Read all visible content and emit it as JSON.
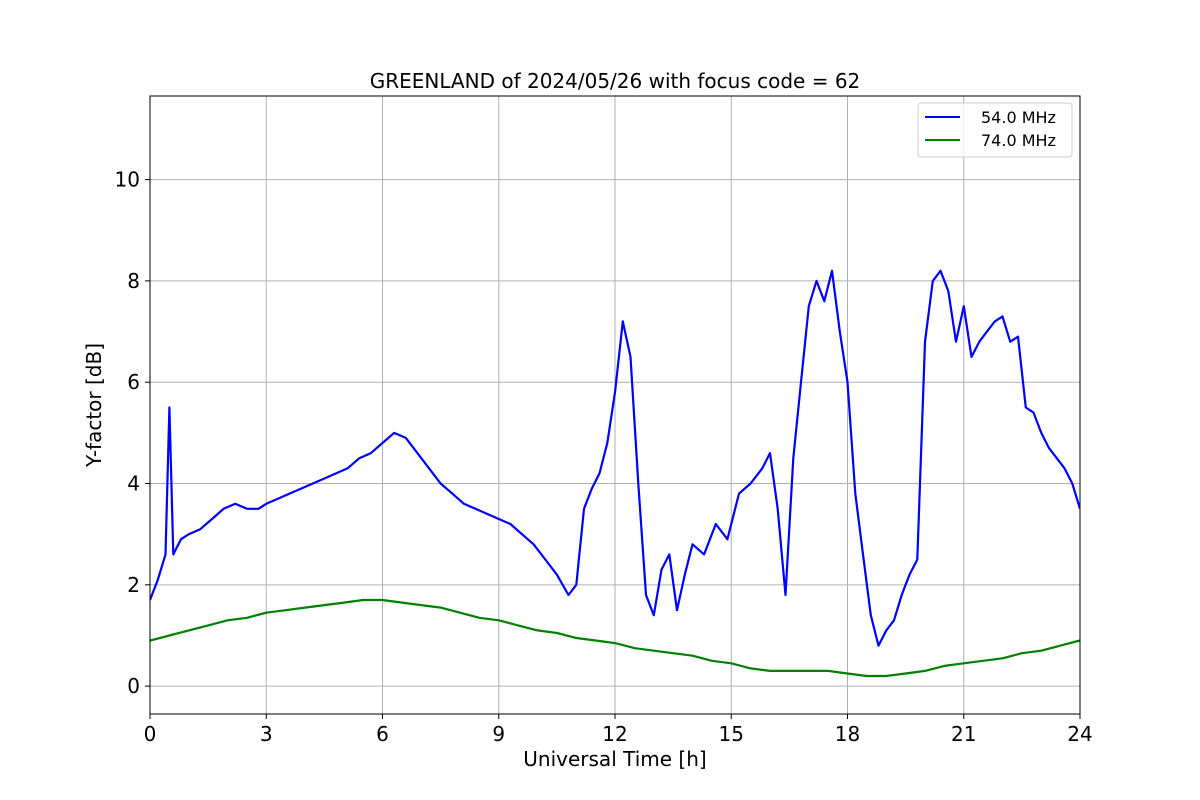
{
  "chart_data": {
    "type": "line",
    "title": "GREENLAND of 2024/05/26 with focus code = 62",
    "xlabel": "Universal Time [h]",
    "ylabel": "Y-factor [dB]",
    "xlim": [
      0,
      24
    ],
    "ylim": [
      -0.55,
      11.65
    ],
    "xticks": [
      0,
      3,
      6,
      9,
      12,
      15,
      18,
      21,
      24
    ],
    "yticks": [
      0,
      2,
      4,
      6,
      8,
      10
    ],
    "grid": true,
    "legend_position": "top-right",
    "series": [
      {
        "name": "54.0 MHz",
        "color": "#0000ff",
        "x": [
          0,
          0.2,
          0.4,
          0.5,
          0.6,
          0.8,
          1.0,
          1.3,
          1.6,
          1.9,
          2.2,
          2.5,
          2.8,
          3.0,
          3.3,
          3.6,
          3.9,
          4.2,
          4.5,
          4.8,
          5.1,
          5.4,
          5.7,
          6.0,
          6.3,
          6.6,
          6.9,
          7.2,
          7.5,
          7.8,
          8.1,
          8.4,
          8.7,
          9.0,
          9.3,
          9.6,
          9.9,
          10.2,
          10.5,
          10.8,
          11.0,
          11.2,
          11.4,
          11.6,
          11.8,
          12.0,
          12.2,
          12.4,
          12.6,
          12.8,
          13.0,
          13.2,
          13.4,
          13.6,
          13.8,
          14.0,
          14.3,
          14.6,
          14.9,
          15.2,
          15.5,
          15.8,
          16.0,
          16.2,
          16.4,
          16.6,
          16.8,
          17.0,
          17.2,
          17.4,
          17.6,
          17.8,
          18.0,
          18.2,
          18.4,
          18.6,
          18.8,
          19.0,
          19.2,
          19.4,
          19.6,
          19.8,
          20.0,
          20.2,
          20.4,
          20.6,
          20.8,
          21.0,
          21.2,
          21.4,
          21.6,
          21.8,
          22.0,
          22.2,
          22.4,
          22.6,
          22.8,
          23.0,
          23.2,
          23.4,
          23.6,
          23.8,
          24.0
        ],
        "y": [
          1.7,
          2.1,
          2.6,
          5.5,
          2.6,
          2.9,
          3.0,
          3.1,
          3.3,
          3.5,
          3.6,
          3.5,
          3.5,
          3.6,
          3.7,
          3.8,
          3.9,
          4.0,
          4.1,
          4.2,
          4.3,
          4.5,
          4.6,
          4.8,
          5.0,
          4.9,
          4.6,
          4.3,
          4.0,
          3.8,
          3.6,
          3.5,
          3.4,
          3.3,
          3.2,
          3.0,
          2.8,
          2.5,
          2.2,
          1.8,
          2.0,
          3.5,
          3.9,
          4.2,
          4.8,
          5.8,
          7.2,
          6.5,
          4.0,
          1.8,
          1.4,
          2.3,
          2.6,
          1.5,
          2.2,
          2.8,
          2.6,
          3.2,
          2.9,
          3.8,
          4.0,
          4.3,
          4.6,
          3.5,
          1.8,
          4.5,
          6.0,
          7.5,
          8.0,
          7.6,
          8.2,
          7.0,
          6.0,
          3.8,
          2.6,
          1.4,
          0.8,
          1.1,
          1.3,
          1.8,
          2.2,
          2.5,
          6.8,
          8.0,
          8.2,
          7.8,
          6.8,
          7.5,
          6.5,
          6.8,
          7.0,
          7.2,
          7.3,
          6.8,
          6.9,
          5.5,
          5.4,
          5.0,
          4.7,
          4.5,
          4.3,
          4.0,
          3.5
        ]
      },
      {
        "name": "74.0 MHz",
        "color": "#008000",
        "x": [
          0,
          0.5,
          1.0,
          1.5,
          2.0,
          2.5,
          3.0,
          3.5,
          4.0,
          4.5,
          5.0,
          5.5,
          6.0,
          6.5,
          7.0,
          7.5,
          8.0,
          8.5,
          9.0,
          9.5,
          10.0,
          10.5,
          11.0,
          11.5,
          12.0,
          12.5,
          13.0,
          13.5,
          14.0,
          14.5,
          15.0,
          15.5,
          16.0,
          16.5,
          17.0,
          17.5,
          18.0,
          18.5,
          19.0,
          19.5,
          20.0,
          20.5,
          21.0,
          21.5,
          22.0,
          22.5,
          23.0,
          23.5,
          24.0
        ],
        "y": [
          0.9,
          1.0,
          1.1,
          1.2,
          1.3,
          1.35,
          1.45,
          1.5,
          1.55,
          1.6,
          1.65,
          1.7,
          1.7,
          1.65,
          1.6,
          1.55,
          1.45,
          1.35,
          1.3,
          1.2,
          1.1,
          1.05,
          0.95,
          0.9,
          0.85,
          0.75,
          0.7,
          0.65,
          0.6,
          0.5,
          0.45,
          0.35,
          0.3,
          0.3,
          0.3,
          0.3,
          0.25,
          0.2,
          0.2,
          0.25,
          0.3,
          0.4,
          0.45,
          0.5,
          0.55,
          0.65,
          0.7,
          0.8,
          0.9
        ]
      }
    ]
  }
}
